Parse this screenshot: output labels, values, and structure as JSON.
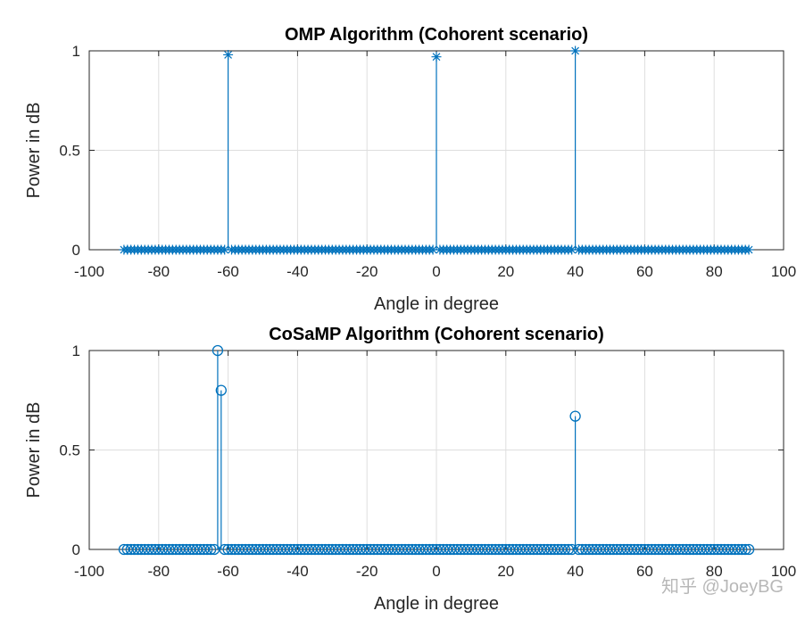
{
  "watermark": "知乎 @JoeyBG",
  "chart_data": [
    {
      "type": "stem",
      "title": "OMP Algorithm (Cohorent scenario)",
      "xlabel": "Angle in degree",
      "ylabel": "Power in dB",
      "xlim": [
        -100,
        100
      ],
      "ylim": [
        0,
        1
      ],
      "xticks": [
        -100,
        -80,
        -60,
        -40,
        -20,
        0,
        20,
        40,
        60,
        80,
        100
      ],
      "yticks": [
        0,
        0.5,
        1
      ],
      "xtick_labels": [
        "-100",
        "-80",
        "-60",
        "-40",
        "-20",
        "0",
        "20",
        "40",
        "60",
        "80",
        "100"
      ],
      "ytick_labels": [
        "0",
        "0.5",
        "1"
      ],
      "grid": true,
      "marker": "asterisk",
      "color": "#0072bd",
      "x_start": -90,
      "x_end": 90,
      "x_step": 1,
      "peaks": [
        {
          "x": -60,
          "y": 0.98
        },
        {
          "x": 0,
          "y": 0.97
        },
        {
          "x": 40,
          "y": 1.0
        }
      ]
    },
    {
      "type": "stem",
      "title": "CoSaMP Algorithm (Cohorent scenario)",
      "xlabel": "Angle in degree",
      "ylabel": "Power in dB",
      "xlim": [
        -100,
        100
      ],
      "ylim": [
        0,
        1
      ],
      "xticks": [
        -100,
        -80,
        -60,
        -40,
        -20,
        0,
        20,
        40,
        60,
        80,
        100
      ],
      "yticks": [
        0,
        0.5,
        1
      ],
      "xtick_labels": [
        "-100",
        "-80",
        "-60",
        "-40",
        "-20",
        "0",
        "20",
        "40",
        "60",
        "80",
        "100"
      ],
      "ytick_labels": [
        "0",
        "0.5",
        "1"
      ],
      "grid": true,
      "marker": "circle",
      "color": "#0072bd",
      "x_start": -90,
      "x_end": 90,
      "x_step": 1,
      "peaks": [
        {
          "x": -63,
          "y": 1.0
        },
        {
          "x": -62,
          "y": 0.8
        },
        {
          "x": 40,
          "y": 0.67
        }
      ]
    }
  ]
}
